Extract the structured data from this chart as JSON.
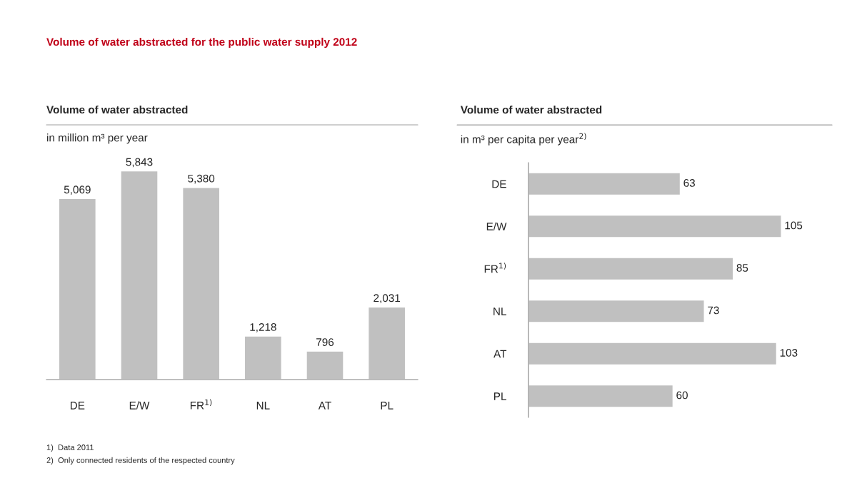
{
  "chart_data": [
    {
      "type": "bar",
      "title": "Volume of water abstracted",
      "subtitle": "in million m³ per year",
      "categories": [
        "DE",
        "E/W",
        "FR$^{1)}$",
        "NL",
        "AT",
        "PL"
      ],
      "values": [
        5069,
        5843,
        5380,
        1218,
        796,
        2031
      ],
      "color": "#c0c0c0",
      "value_labels": [
        "5,069",
        "5,843",
        "5,380",
        "1,218",
        "796",
        "2,031"
      ],
      "annotations": [
        "Volume of water abstracted for the public water supply 2012",
        "1)  Data 2011",
        "2)  Only connected residents of the respected country"
      ]
    },
    {
      "type": "bar",
      "orientation": "horizontal",
      "title": "Volume of water abstracted",
      "subtitle": "in m³ per capita per year$^{2)}$",
      "categories": [
        "DE",
        "E/W",
        "FR$^{1)}$",
        "NL",
        "AT",
        "PL"
      ],
      "values": [
        63,
        105,
        85,
        73,
        103,
        60
      ],
      "color": "#c0c0c0",
      "data_labels": true
    }
  ]
}
